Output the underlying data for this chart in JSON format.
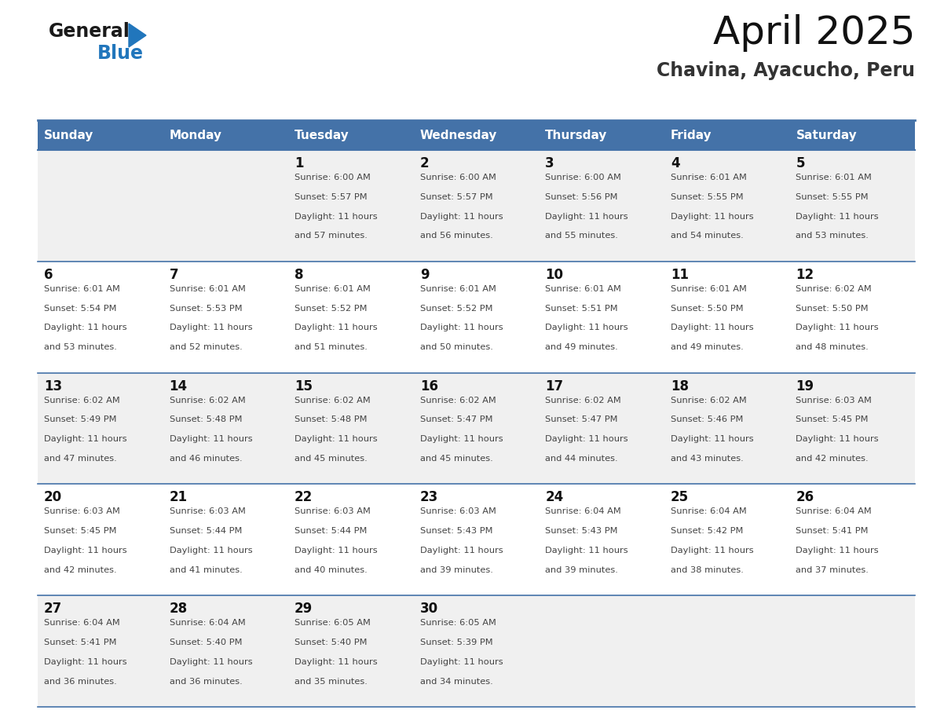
{
  "title": "April 2025",
  "subtitle": "Chavina, Ayacucho, Peru",
  "days_of_week": [
    "Sunday",
    "Monday",
    "Tuesday",
    "Wednesday",
    "Thursday",
    "Friday",
    "Saturday"
  ],
  "header_bg": "#4472a8",
  "header_text": "#ffffff",
  "row_bg_odd": "#f0f0f0",
  "row_bg_even": "#ffffff",
  "border_color": "#4472a8",
  "text_color": "#444444",
  "day_num_color": "#111111",
  "cal_data": [
    [
      null,
      null,
      {
        "day": 1,
        "sunrise": "6:00 AM",
        "sunset": "5:57 PM",
        "dl1": "11 hours",
        "dl2": "and 57 minutes."
      },
      {
        "day": 2,
        "sunrise": "6:00 AM",
        "sunset": "5:57 PM",
        "dl1": "11 hours",
        "dl2": "and 56 minutes."
      },
      {
        "day": 3,
        "sunrise": "6:00 AM",
        "sunset": "5:56 PM",
        "dl1": "11 hours",
        "dl2": "and 55 minutes."
      },
      {
        "day": 4,
        "sunrise": "6:01 AM",
        "sunset": "5:55 PM",
        "dl1": "11 hours",
        "dl2": "and 54 minutes."
      },
      {
        "day": 5,
        "sunrise": "6:01 AM",
        "sunset": "5:55 PM",
        "dl1": "11 hours",
        "dl2": "and 53 minutes."
      }
    ],
    [
      {
        "day": 6,
        "sunrise": "6:01 AM",
        "sunset": "5:54 PM",
        "dl1": "11 hours",
        "dl2": "and 53 minutes."
      },
      {
        "day": 7,
        "sunrise": "6:01 AM",
        "sunset": "5:53 PM",
        "dl1": "11 hours",
        "dl2": "and 52 minutes."
      },
      {
        "day": 8,
        "sunrise": "6:01 AM",
        "sunset": "5:52 PM",
        "dl1": "11 hours",
        "dl2": "and 51 minutes."
      },
      {
        "day": 9,
        "sunrise": "6:01 AM",
        "sunset": "5:52 PM",
        "dl1": "11 hours",
        "dl2": "and 50 minutes."
      },
      {
        "day": 10,
        "sunrise": "6:01 AM",
        "sunset": "5:51 PM",
        "dl1": "11 hours",
        "dl2": "and 49 minutes."
      },
      {
        "day": 11,
        "sunrise": "6:01 AM",
        "sunset": "5:50 PM",
        "dl1": "11 hours",
        "dl2": "and 49 minutes."
      },
      {
        "day": 12,
        "sunrise": "6:02 AM",
        "sunset": "5:50 PM",
        "dl1": "11 hours",
        "dl2": "and 48 minutes."
      }
    ],
    [
      {
        "day": 13,
        "sunrise": "6:02 AM",
        "sunset": "5:49 PM",
        "dl1": "11 hours",
        "dl2": "and 47 minutes."
      },
      {
        "day": 14,
        "sunrise": "6:02 AM",
        "sunset": "5:48 PM",
        "dl1": "11 hours",
        "dl2": "and 46 minutes."
      },
      {
        "day": 15,
        "sunrise": "6:02 AM",
        "sunset": "5:48 PM",
        "dl1": "11 hours",
        "dl2": "and 45 minutes."
      },
      {
        "day": 16,
        "sunrise": "6:02 AM",
        "sunset": "5:47 PM",
        "dl1": "11 hours",
        "dl2": "and 45 minutes."
      },
      {
        "day": 17,
        "sunrise": "6:02 AM",
        "sunset": "5:47 PM",
        "dl1": "11 hours",
        "dl2": "and 44 minutes."
      },
      {
        "day": 18,
        "sunrise": "6:02 AM",
        "sunset": "5:46 PM",
        "dl1": "11 hours",
        "dl2": "and 43 minutes."
      },
      {
        "day": 19,
        "sunrise": "6:03 AM",
        "sunset": "5:45 PM",
        "dl1": "11 hours",
        "dl2": "and 42 minutes."
      }
    ],
    [
      {
        "day": 20,
        "sunrise": "6:03 AM",
        "sunset": "5:45 PM",
        "dl1": "11 hours",
        "dl2": "and 42 minutes."
      },
      {
        "day": 21,
        "sunrise": "6:03 AM",
        "sunset": "5:44 PM",
        "dl1": "11 hours",
        "dl2": "and 41 minutes."
      },
      {
        "day": 22,
        "sunrise": "6:03 AM",
        "sunset": "5:44 PM",
        "dl1": "11 hours",
        "dl2": "and 40 minutes."
      },
      {
        "day": 23,
        "sunrise": "6:03 AM",
        "sunset": "5:43 PM",
        "dl1": "11 hours",
        "dl2": "and 39 minutes."
      },
      {
        "day": 24,
        "sunrise": "6:04 AM",
        "sunset": "5:43 PM",
        "dl1": "11 hours",
        "dl2": "and 39 minutes."
      },
      {
        "day": 25,
        "sunrise": "6:04 AM",
        "sunset": "5:42 PM",
        "dl1": "11 hours",
        "dl2": "and 38 minutes."
      },
      {
        "day": 26,
        "sunrise": "6:04 AM",
        "sunset": "5:41 PM",
        "dl1": "11 hours",
        "dl2": "and 37 minutes."
      }
    ],
    [
      {
        "day": 27,
        "sunrise": "6:04 AM",
        "sunset": "5:41 PM",
        "dl1": "11 hours",
        "dl2": "and 36 minutes."
      },
      {
        "day": 28,
        "sunrise": "6:04 AM",
        "sunset": "5:40 PM",
        "dl1": "11 hours",
        "dl2": "and 36 minutes."
      },
      {
        "day": 29,
        "sunrise": "6:05 AM",
        "sunset": "5:40 PM",
        "dl1": "11 hours",
        "dl2": "and 35 minutes."
      },
      {
        "day": 30,
        "sunrise": "6:05 AM",
        "sunset": "5:39 PM",
        "dl1": "11 hours",
        "dl2": "and 34 minutes."
      },
      null,
      null,
      null
    ]
  ],
  "logo_color1": "#1a1a1a",
  "logo_color2": "#2176bc",
  "logo_triangle_color": "#2176bc"
}
